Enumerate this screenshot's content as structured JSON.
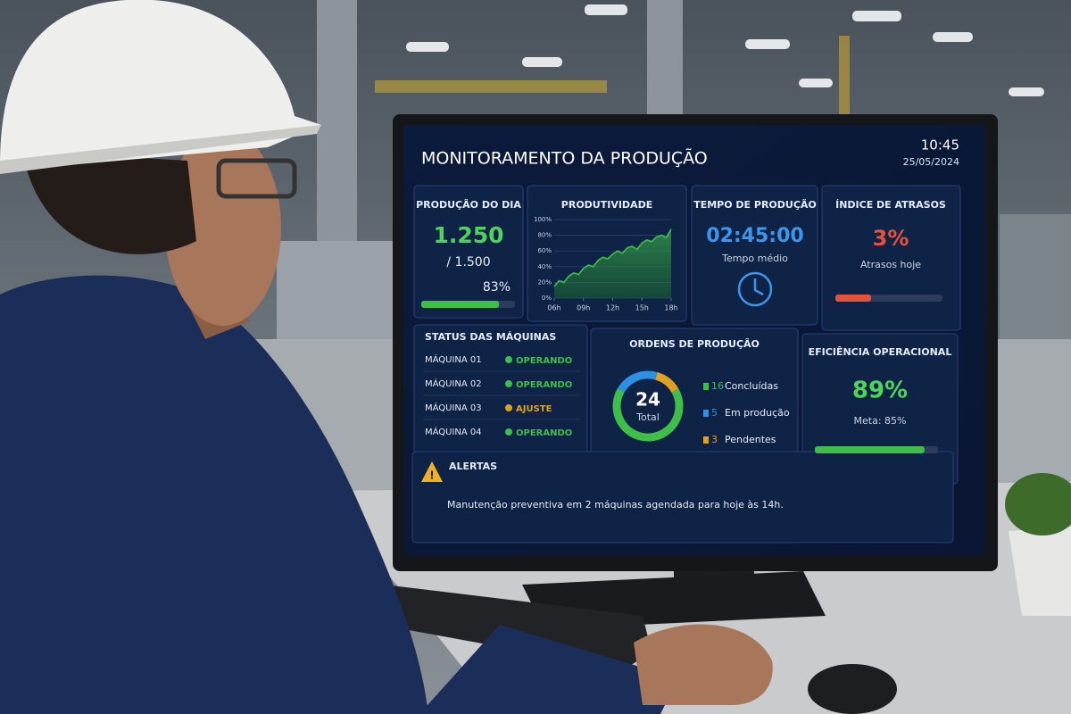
{
  "header": {
    "title": "MONITORAMENTO DA PRODUÇÃO",
    "time": "10:45",
    "date": "25/05/2024"
  },
  "production": {
    "title": "PRODUÇÃO DO DIA",
    "value": "1.250",
    "target": "/ 1.500",
    "progress": {
      "value": 83,
      "label": "83%"
    },
    "color": "#3fbf4a"
  },
  "chart_data": {
    "type": "line",
    "title": "PRODUTIVIDADE",
    "x": [
      6,
      6.5,
      7,
      7.5,
      8,
      8.5,
      9,
      9.5,
      10,
      10.5,
      11,
      11.5,
      12,
      12.5,
      13,
      13.5,
      14,
      14.5,
      15,
      15.5,
      16,
      16.5,
      17,
      17.5,
      18
    ],
    "values": [
      15,
      22,
      20,
      28,
      32,
      30,
      38,
      42,
      40,
      48,
      52,
      50,
      56,
      60,
      57,
      64,
      66,
      62,
      70,
      74,
      72,
      78,
      80,
      77,
      88
    ],
    "color": "#3fbf4a",
    "xlim": [
      6,
      18
    ],
    "ylim": [
      0,
      100
    ],
    "xticks": [
      {
        "value": 6,
        "label": "06h"
      },
      {
        "value": 9,
        "label": "09h"
      },
      {
        "value": 12,
        "label": "12h"
      },
      {
        "value": 15,
        "label": "15h"
      },
      {
        "value": 18,
        "label": "18h"
      }
    ],
    "yticks": [
      {
        "value": 0,
        "label": "0%"
      },
      {
        "value": 20,
        "label": "20%"
      },
      {
        "value": 40,
        "label": "40%"
      },
      {
        "value": 60,
        "label": "60%"
      },
      {
        "value": 80,
        "label": "80%"
      },
      {
        "value": 100,
        "label": "100%"
      }
    ],
    "grid": true
  },
  "time_card": {
    "title": "TEMPO DE PRODUÇÃO",
    "value": "02:45:00",
    "caption": "Tempo médio"
  },
  "delays": {
    "title": "ÍNDICE DE ATRASOS",
    "value": {
      "value": 3,
      "label": "3%"
    },
    "caption": "Atrasos hoje"
  },
  "machines": {
    "title": "STATUS DAS MÁQUINAS",
    "items": [
      {
        "name": "MÁQUINA 01",
        "status": "OPERANDO",
        "color": "#3fbf4a"
      },
      {
        "name": "MÁQUINA 02",
        "status": "OPERANDO",
        "color": "#3fbf4a"
      },
      {
        "name": "MÁQUINA 03",
        "status": "AJUSTE",
        "color": "#e0a020"
      },
      {
        "name": "MÁQUINA 04",
        "status": "OPERANDO",
        "color": "#3fbf4a"
      }
    ]
  },
  "orders": {
    "title": "ORDENS DE PRODUÇÃO",
    "total": 24,
    "total_label": "Total",
    "segments": [
      {
        "value": 16,
        "label": "Concluídas",
        "color": "#3fbf4a"
      },
      {
        "value": 5,
        "label": "Em produção",
        "color": "#2f8fe0"
      },
      {
        "value": 3,
        "label": "Pendentes",
        "color": "#e0a020"
      }
    ]
  },
  "efficiency": {
    "title": "EFICIÊNCIA OPERACIONAL",
    "value": {
      "value": 89,
      "label": "89%"
    },
    "caption": "Meta: 85%",
    "color": "#3fbf4a"
  },
  "alerts": {
    "title": "ALERTAS",
    "message": "Manutenção preventiva em 2 máquinas agendada para hoje às 14h."
  }
}
